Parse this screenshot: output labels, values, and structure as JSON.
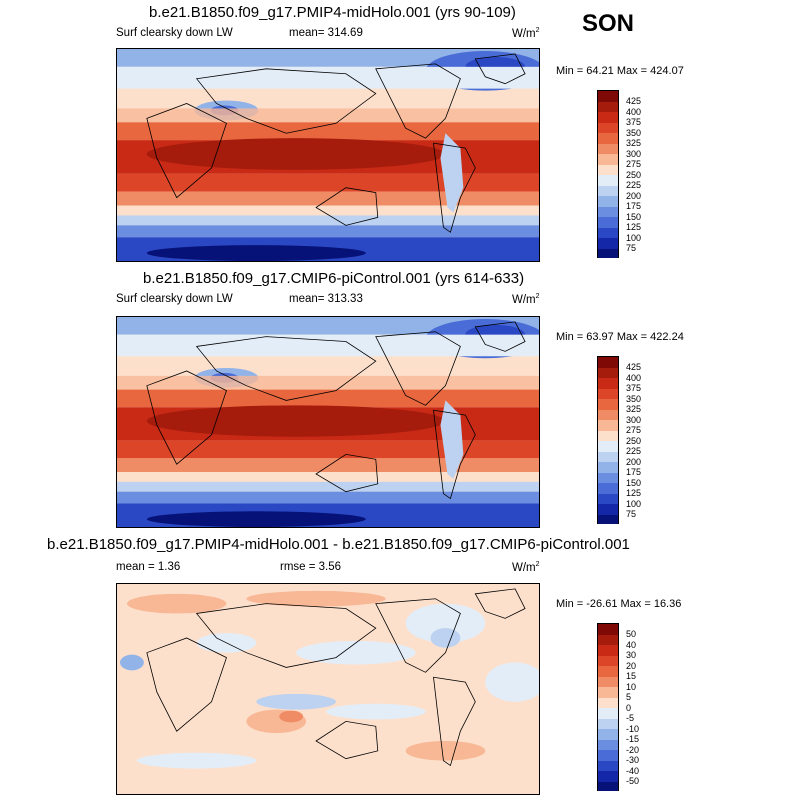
{
  "season": "SON",
  "chart_data": [
    {
      "type": "heatmap",
      "title": "b.e21.B1850.f09_g17.PMIP4-midHolo.001 (yrs 90-109)",
      "left_label": "Surf clearsky down LW",
      "center_label": "mean= 314.69",
      "units_base": "W/m",
      "units_exp": "2",
      "minmax": "Min =  64.21 Max = 424.07",
      "levels": [
        "425",
        "400",
        "375",
        "350",
        "325",
        "300",
        "275",
        "250",
        "225",
        "200",
        "175",
        "150",
        "125",
        "100",
        "75"
      ],
      "colors": [
        "#7f0a05",
        "#a51b0c",
        "#c82a16",
        "#dc4527",
        "#e8673f",
        "#f08c65",
        "#f8b896",
        "#fde0cc",
        "#e3edf8",
        "#bcd2f0",
        "#92b3e8",
        "#6b8ee0",
        "#4a6cd6",
        "#2b48c4",
        "#1327a8",
        "#061278"
      ]
    },
    {
      "type": "heatmap",
      "title": "b.e21.B1850.f09_g17.CMIP6-piControl.001 (yrs 614-633)",
      "left_label": "Surf clearsky down LW",
      "center_label": "mean= 313.33",
      "units_base": "W/m",
      "units_exp": "2",
      "minmax": "Min =  63.97 Max = 422.24",
      "levels": [
        "425",
        "400",
        "375",
        "350",
        "325",
        "300",
        "275",
        "250",
        "225",
        "200",
        "175",
        "150",
        "125",
        "100",
        "75"
      ],
      "colors": [
        "#7f0a05",
        "#a51b0c",
        "#c82a16",
        "#dc4527",
        "#e8673f",
        "#f08c65",
        "#f8b896",
        "#fde0cc",
        "#e3edf8",
        "#bcd2f0",
        "#92b3e8",
        "#6b8ee0",
        "#4a6cd6",
        "#2b48c4",
        "#1327a8",
        "#061278"
      ]
    },
    {
      "type": "heatmap",
      "title": "b.e21.B1850.f09_g17.PMIP4-midHolo.001 - b.e21.B1850.f09_g17.CMIP6-piControl.001",
      "left_label": "mean =   1.36",
      "center_label": "rmse =   3.56",
      "units_base": "W/m",
      "units_exp": "2",
      "minmax": "Min = -26.61 Max =  16.36",
      "levels": [
        "50",
        "40",
        "30",
        "20",
        "15",
        "10",
        "5",
        "0",
        "-5",
        "-10",
        "-15",
        "-20",
        "-30",
        "-40",
        "-50"
      ],
      "colors": [
        "#7f0a05",
        "#a51b0c",
        "#c82a16",
        "#dc4527",
        "#e8673f",
        "#f08c65",
        "#f8b896",
        "#fde0cc",
        "#e3edf8",
        "#bcd2f0",
        "#92b3e8",
        "#6b8ee0",
        "#4a6cd6",
        "#2b48c4",
        "#1327a8",
        "#061278"
      ]
    }
  ]
}
